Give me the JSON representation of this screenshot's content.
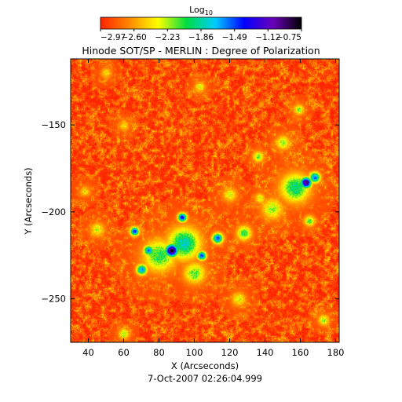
{
  "chart_data": {
    "type": "heatmap",
    "title": "Hinode SOT/SP - MERLIN : Degree of Polarization",
    "xlabel": "X (Arcseconds)",
    "ylabel": "Y (Arcseconds)",
    "footer": "7-Oct-2007 02:26:04.999",
    "xlim": [
      30,
      182
    ],
    "ylim": [
      -275,
      -112
    ],
    "x_ticks": [
      40,
      60,
      80,
      100,
      120,
      140,
      160,
      180
    ],
    "y_ticks": [
      -150,
      -200,
      -250
    ],
    "colorbar": {
      "label_base": "Log",
      "label_sub": "10",
      "min": -2.97,
      "max": -0.75,
      "tick_values": [
        -2.97,
        -2.6,
        -2.23,
        -1.86,
        -1.49,
        -1.12,
        -0.75
      ],
      "tick_labels": [
        "-2.97",
        "-2.60",
        "-2.23",
        "-1.86",
        "-1.49",
        "-1.12",
        "-0.75"
      ],
      "colors": [
        "#ff2200",
        "#ff8800",
        "#ffff00",
        "#00dd44",
        "#00ccff",
        "#0000ff",
        "#6a00bb",
        "#000000"
      ]
    },
    "background_level": -2.85,
    "concentrations": [
      {
        "x": 87,
        "y": -222,
        "peak": -0.75,
        "radius": 3.5
      },
      {
        "x": 94,
        "y": -218,
        "peak": -1.8,
        "radius": 9
      },
      {
        "x": 80,
        "y": -225,
        "peak": -2.0,
        "radius": 9
      },
      {
        "x": 74,
        "y": -222,
        "peak": -1.6,
        "radius": 3
      },
      {
        "x": 66,
        "y": -211,
        "peak": -1.4,
        "radius": 2.5
      },
      {
        "x": 93,
        "y": -203,
        "peak": -1.3,
        "radius": 2.5
      },
      {
        "x": 104,
        "y": -225,
        "peak": -1.4,
        "radius": 2.5
      },
      {
        "x": 113,
        "y": -215,
        "peak": -1.5,
        "radius": 3
      },
      {
        "x": 128,
        "y": -212,
        "peak": -2.0,
        "radius": 4
      },
      {
        "x": 70,
        "y": -233,
        "peak": -1.6,
        "radius": 3
      },
      {
        "x": 100,
        "y": -235,
        "peak": -2.1,
        "radius": 6
      },
      {
        "x": 163,
        "y": -183,
        "peak": -0.85,
        "radius": 3
      },
      {
        "x": 157,
        "y": -186,
        "peak": -1.9,
        "radius": 8
      },
      {
        "x": 168,
        "y": -180,
        "peak": -1.5,
        "radius": 3
      },
      {
        "x": 144,
        "y": -198,
        "peak": -2.2,
        "radius": 6
      },
      {
        "x": 137,
        "y": -192,
        "peak": -2.3,
        "radius": 3
      },
      {
        "x": 150,
        "y": -160,
        "peak": -2.2,
        "radius": 4
      },
      {
        "x": 159,
        "y": -141,
        "peak": -2.2,
        "radius": 3
      },
      {
        "x": 136,
        "y": -168,
        "peak": -2.1,
        "radius": 3
      },
      {
        "x": 120,
        "y": -190,
        "peak": -2.3,
        "radius": 4
      },
      {
        "x": 165,
        "y": -205,
        "peak": -2.1,
        "radius": 3
      },
      {
        "x": 45,
        "y": -210,
        "peak": -2.3,
        "radius": 4
      },
      {
        "x": 38,
        "y": -188,
        "peak": -2.4,
        "radius": 3
      },
      {
        "x": 60,
        "y": -270,
        "peak": -2.2,
        "radius": 3
      },
      {
        "x": 125,
        "y": -250,
        "peak": -2.3,
        "radius": 4
      },
      {
        "x": 173,
        "y": -262,
        "peak": -2.2,
        "radius": 3
      },
      {
        "x": 60,
        "y": -150,
        "peak": -2.4,
        "radius": 3
      },
      {
        "x": 103,
        "y": -128,
        "peak": -2.3,
        "radius": 3
      },
      {
        "x": 50,
        "y": -120,
        "peak": -2.4,
        "radius": 3
      }
    ]
  }
}
